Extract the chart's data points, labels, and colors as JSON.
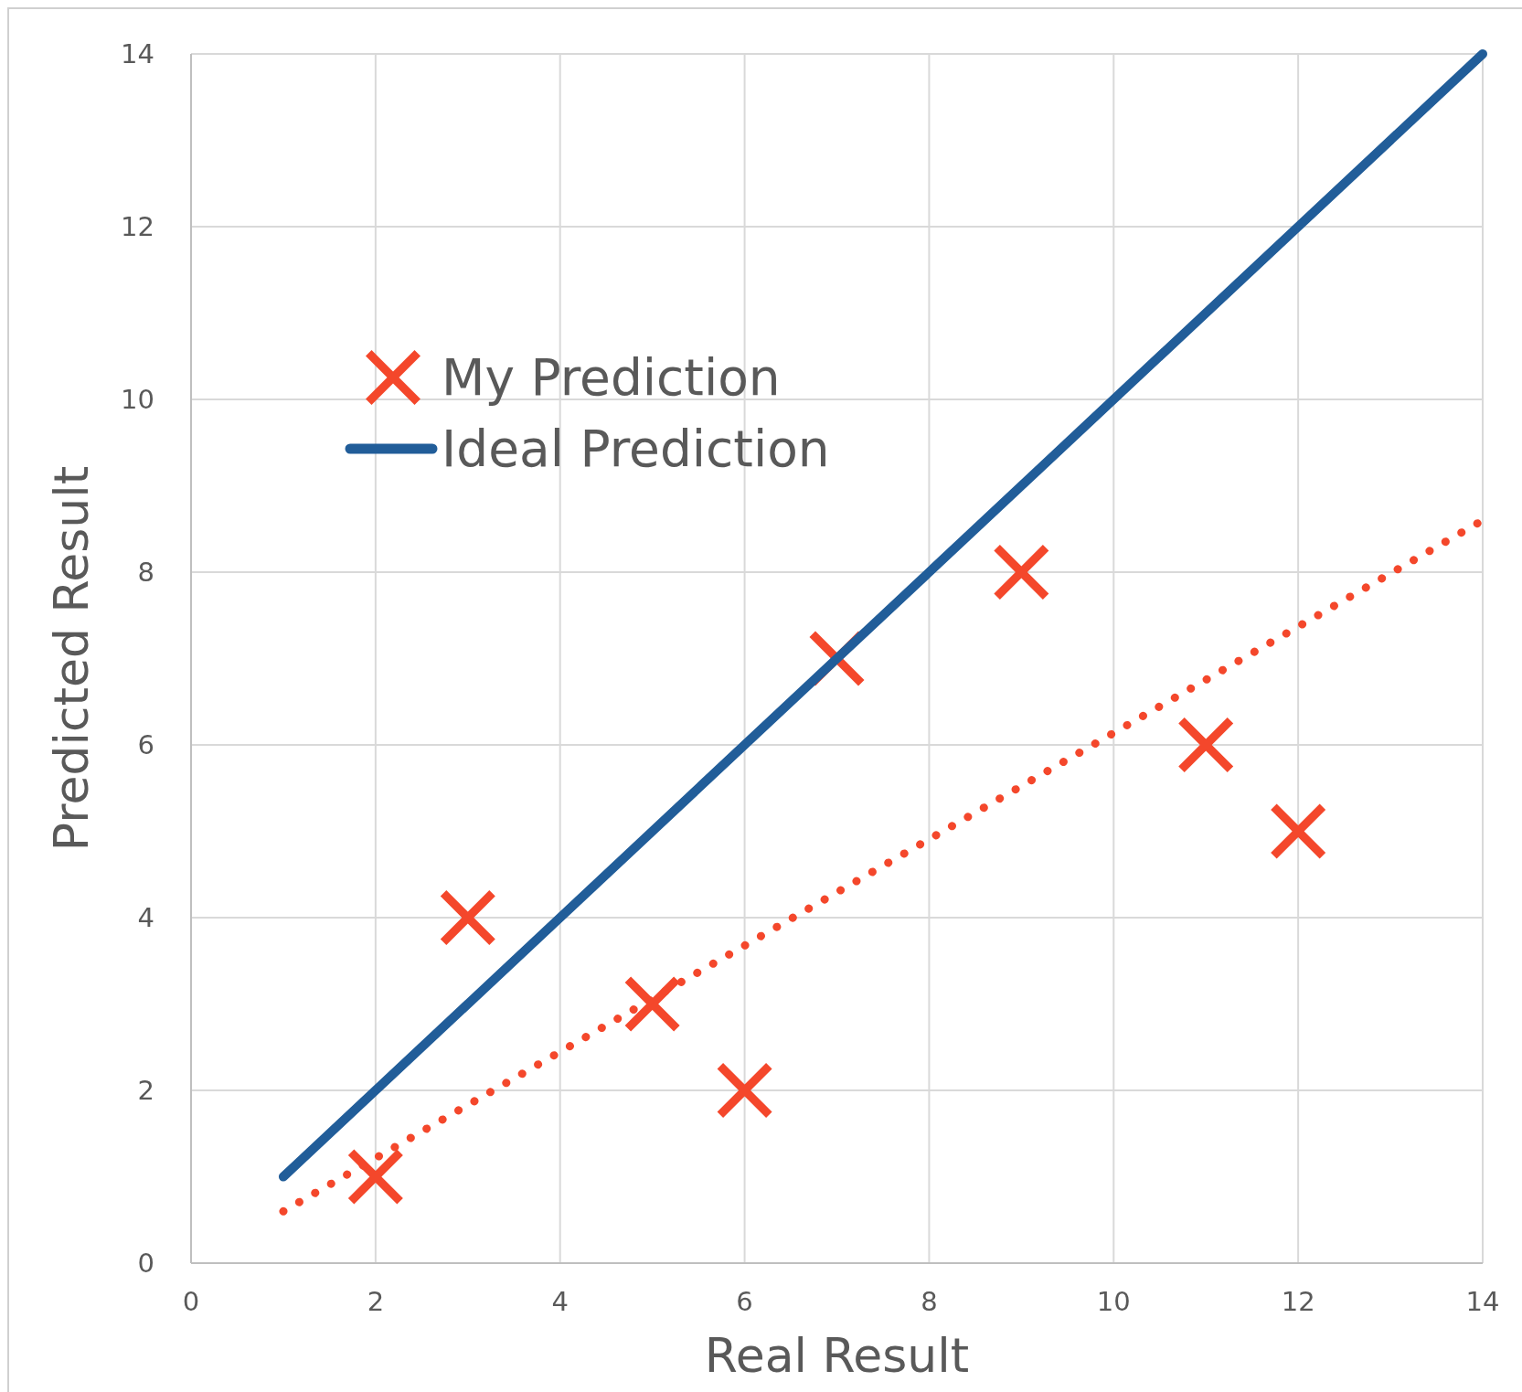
{
  "chart_data": {
    "type": "scatter",
    "xlabel": "Real Result",
    "ylabel": "Predicted Result",
    "xlim": [
      0,
      14
    ],
    "ylim": [
      0,
      14
    ],
    "xticks": [
      0,
      2,
      4,
      6,
      8,
      10,
      12,
      14
    ],
    "yticks": [
      0,
      2,
      4,
      6,
      8,
      10,
      12,
      14
    ],
    "grid": true,
    "legend": "left",
    "series": [
      {
        "name": "My Prediction",
        "color": "#f4472b",
        "marker": "cross",
        "x": [
          2,
          3,
          5,
          6,
          7,
          9,
          11,
          12
        ],
        "values": [
          1,
          4,
          3,
          2,
          7,
          8,
          6,
          5
        ]
      },
      {
        "name": "Ideal Prediction",
        "type": "line",
        "color": "#215d99",
        "marker": "none",
        "line_style": "solid",
        "x": [
          1,
          14
        ],
        "values": [
          1,
          14
        ]
      },
      {
        "type": "line",
        "color": "#f4472b",
        "marker": "none",
        "line_style": "dotted",
        "x": [
          1,
          14
        ],
        "values": [
          0.6,
          8.6
        ]
      }
    ]
  }
}
